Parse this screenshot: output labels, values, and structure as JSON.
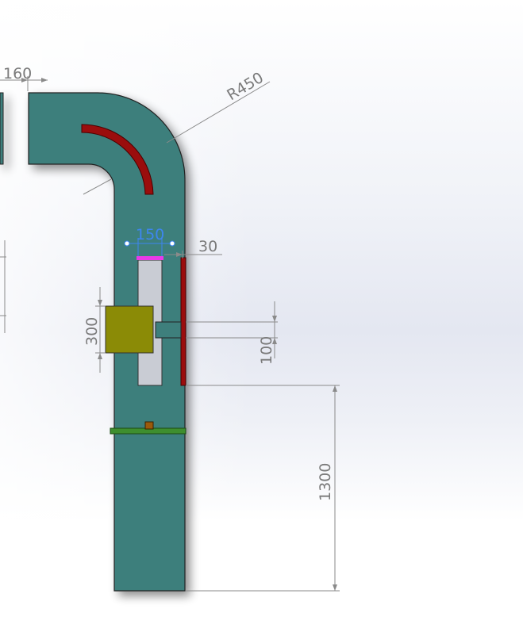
{
  "dimensions": {
    "gap_top": "160",
    "radius": "R450",
    "slot_width": "150",
    "side_offset": "30",
    "motor_height": "300",
    "shaft_height": "100",
    "lower_length": "1300"
  },
  "colors": {
    "duct": "#3e7f7c",
    "rail": "#9a0d0d",
    "motor": "#8b8b06",
    "cap": "#e83ae8",
    "bracket": "#3e8e2e",
    "knob": "#9b5a0c",
    "dim_line": "#8a8a8a",
    "dim_active": "#3d86f0"
  }
}
